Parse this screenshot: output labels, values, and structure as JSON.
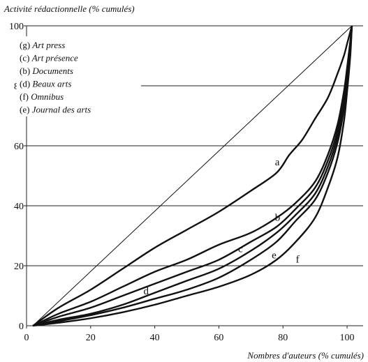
{
  "chart_data": {
    "type": "line",
    "ylabel": "Activité rédactionnelle (% cumulés)",
    "xlabel": "Nombres d'auteurs (% cumulés)",
    "xlim": [
      0,
      105
    ],
    "ylim": [
      0,
      100
    ],
    "x_ticks": [
      "0",
      "20",
      "40",
      "60",
      "80",
      "100"
    ],
    "y_ticks": [
      "0",
      "20",
      "40",
      "60",
      "80",
      "100"
    ],
    "x_tick_values": [
      0,
      20,
      40,
      60,
      80,
      100
    ],
    "y_tick_values": [
      0,
      20,
      40,
      60,
      80,
      100
    ],
    "grid": "horizontal",
    "legend_position": "top-left",
    "legend": [
      {
        "code": "(g)",
        "name": "Art press"
      },
      {
        "code": "(c)",
        "name": "Art présence"
      },
      {
        "code": "(b)",
        "name": "Documents"
      },
      {
        "code": "(d)",
        "name": "Beaux arts"
      },
      {
        "code": "(f)",
        "name": "Omnibus"
      },
      {
        "code": "(e)",
        "name": "Journal des arts"
      }
    ],
    "diagonal": {
      "x": [
        2,
        101.5
      ],
      "y": [
        0,
        100
      ]
    },
    "series": [
      {
        "label": "a",
        "label_at": [
          77.5,
          53.5
        ],
        "x": [
          2,
          10,
          20,
          30,
          40,
          50,
          60,
          70,
          78,
          82,
          86,
          90,
          94,
          97,
          99,
          100,
          101,
          101.5
        ],
        "y": [
          0,
          6,
          12,
          19,
          26,
          32,
          38,
          45,
          51,
          57,
          62,
          69,
          76,
          84,
          90,
          94,
          98,
          100
        ]
      },
      {
        "label": "b",
        "label_at": [
          77.5,
          35
        ],
        "x": [
          2,
          10,
          20,
          30,
          40,
          50,
          60,
          70,
          78,
          84,
          90,
          94,
          97,
          99,
          100,
          101,
          101.5
        ],
        "y": [
          0,
          4,
          8,
          13,
          18,
          22,
          27,
          31,
          36,
          41,
          48,
          57,
          67,
          78,
          86,
          95,
          100
        ]
      },
      {
        "label": "c",
        "label_at": [
          66,
          24.5
        ],
        "x": [
          2,
          10,
          20,
          30,
          40,
          50,
          60,
          70,
          78,
          84,
          90,
          94,
          97,
          99,
          100,
          101,
          101.5
        ],
        "y": [
          0,
          3,
          6,
          10,
          14,
          18,
          22,
          28,
          33,
          39,
          46,
          55,
          65,
          77,
          85,
          94,
          100
        ]
      },
      {
        "label": "d",
        "label_at": [
          36.5,
          10.5
        ],
        "x": [
          2,
          10,
          20,
          30,
          40,
          50,
          60,
          70,
          78,
          84,
          90,
          94,
          97,
          99,
          100,
          101,
          101.5
        ],
        "y": [
          0,
          2,
          4,
          7,
          11,
          15,
          19,
          25,
          31,
          37,
          44,
          53,
          63,
          74,
          83,
          93,
          100
        ]
      },
      {
        "label": "e",
        "label_at": [
          76.5,
          22.5
        ],
        "x": [
          2,
          10,
          20,
          30,
          40,
          50,
          60,
          70,
          78,
          84,
          90,
          94,
          97,
          99,
          100,
          101,
          101.5
        ],
        "y": [
          0,
          1.5,
          3.5,
          6,
          9,
          12,
          16,
          22,
          28,
          35,
          42,
          51,
          61,
          72,
          81,
          92,
          100
        ]
      },
      {
        "label": "f",
        "label_at": [
          84,
          21
        ],
        "x": [
          2,
          10,
          20,
          30,
          40,
          50,
          60,
          70,
          78,
          84,
          90,
          94,
          97,
          99,
          100,
          101,
          101.5
        ],
        "y": [
          0,
          1,
          2.5,
          4.5,
          7,
          10,
          13,
          17,
          22,
          28,
          36,
          46,
          56,
          68,
          78,
          90,
          100
        ]
      }
    ]
  }
}
